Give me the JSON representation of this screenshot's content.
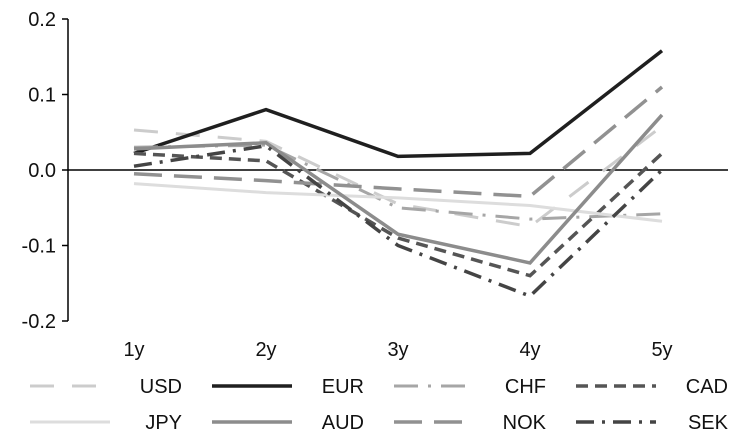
{
  "chart_data": {
    "type": "line",
    "categories": [
      "1y",
      "2y",
      "3y",
      "4y",
      "5y"
    ],
    "y_ticks": [
      "0.2",
      "0.1",
      "0.0",
      "-0.1",
      "-0.2"
    ],
    "ylim": [
      -0.2,
      0.2
    ],
    "grid": false,
    "legend_position": "bottom",
    "series": [
      {
        "name": "USD",
        "values": [
          0.053,
          0.038,
          -0.045,
          -0.075,
          0.058
        ],
        "color": "#cccccc",
        "dash": "24,18",
        "width": 3
      },
      {
        "name": "EUR",
        "values": [
          0.022,
          0.08,
          0.018,
          0.022,
          0.158
        ],
        "color": "#1f1f1f",
        "dash": "",
        "width": 3.5
      },
      {
        "name": "CHF",
        "values": [
          0.03,
          0.033,
          -0.05,
          -0.065,
          -0.058
        ],
        "color": "#a6a6a6",
        "dash": "24,10,3,10",
        "width": 3
      },
      {
        "name": "CAD",
        "values": [
          0.022,
          0.012,
          -0.09,
          -0.14,
          0.022
        ],
        "color": "#555555",
        "dash": "12,7",
        "width": 3.5
      },
      {
        "name": "JPY",
        "values": [
          -0.018,
          -0.03,
          -0.037,
          -0.047,
          -0.068
        ],
        "color": "#dddddd",
        "dash": "",
        "width": 3
      },
      {
        "name": "AUD",
        "values": [
          0.028,
          0.036,
          -0.085,
          -0.123,
          0.073
        ],
        "color": "#8c8c8c",
        "dash": "",
        "width": 3.5
      },
      {
        "name": "NOK",
        "values": [
          -0.005,
          -0.014,
          -0.025,
          -0.035,
          0.11
        ],
        "color": "#919191",
        "dash": "28,12",
        "width": 3.5
      },
      {
        "name": "SEK",
        "values": [
          0.005,
          0.032,
          -0.1,
          -0.167,
          0.0
        ],
        "color": "#444444",
        "dash": "18,8,3,8",
        "width": 3.5
      }
    ]
  }
}
